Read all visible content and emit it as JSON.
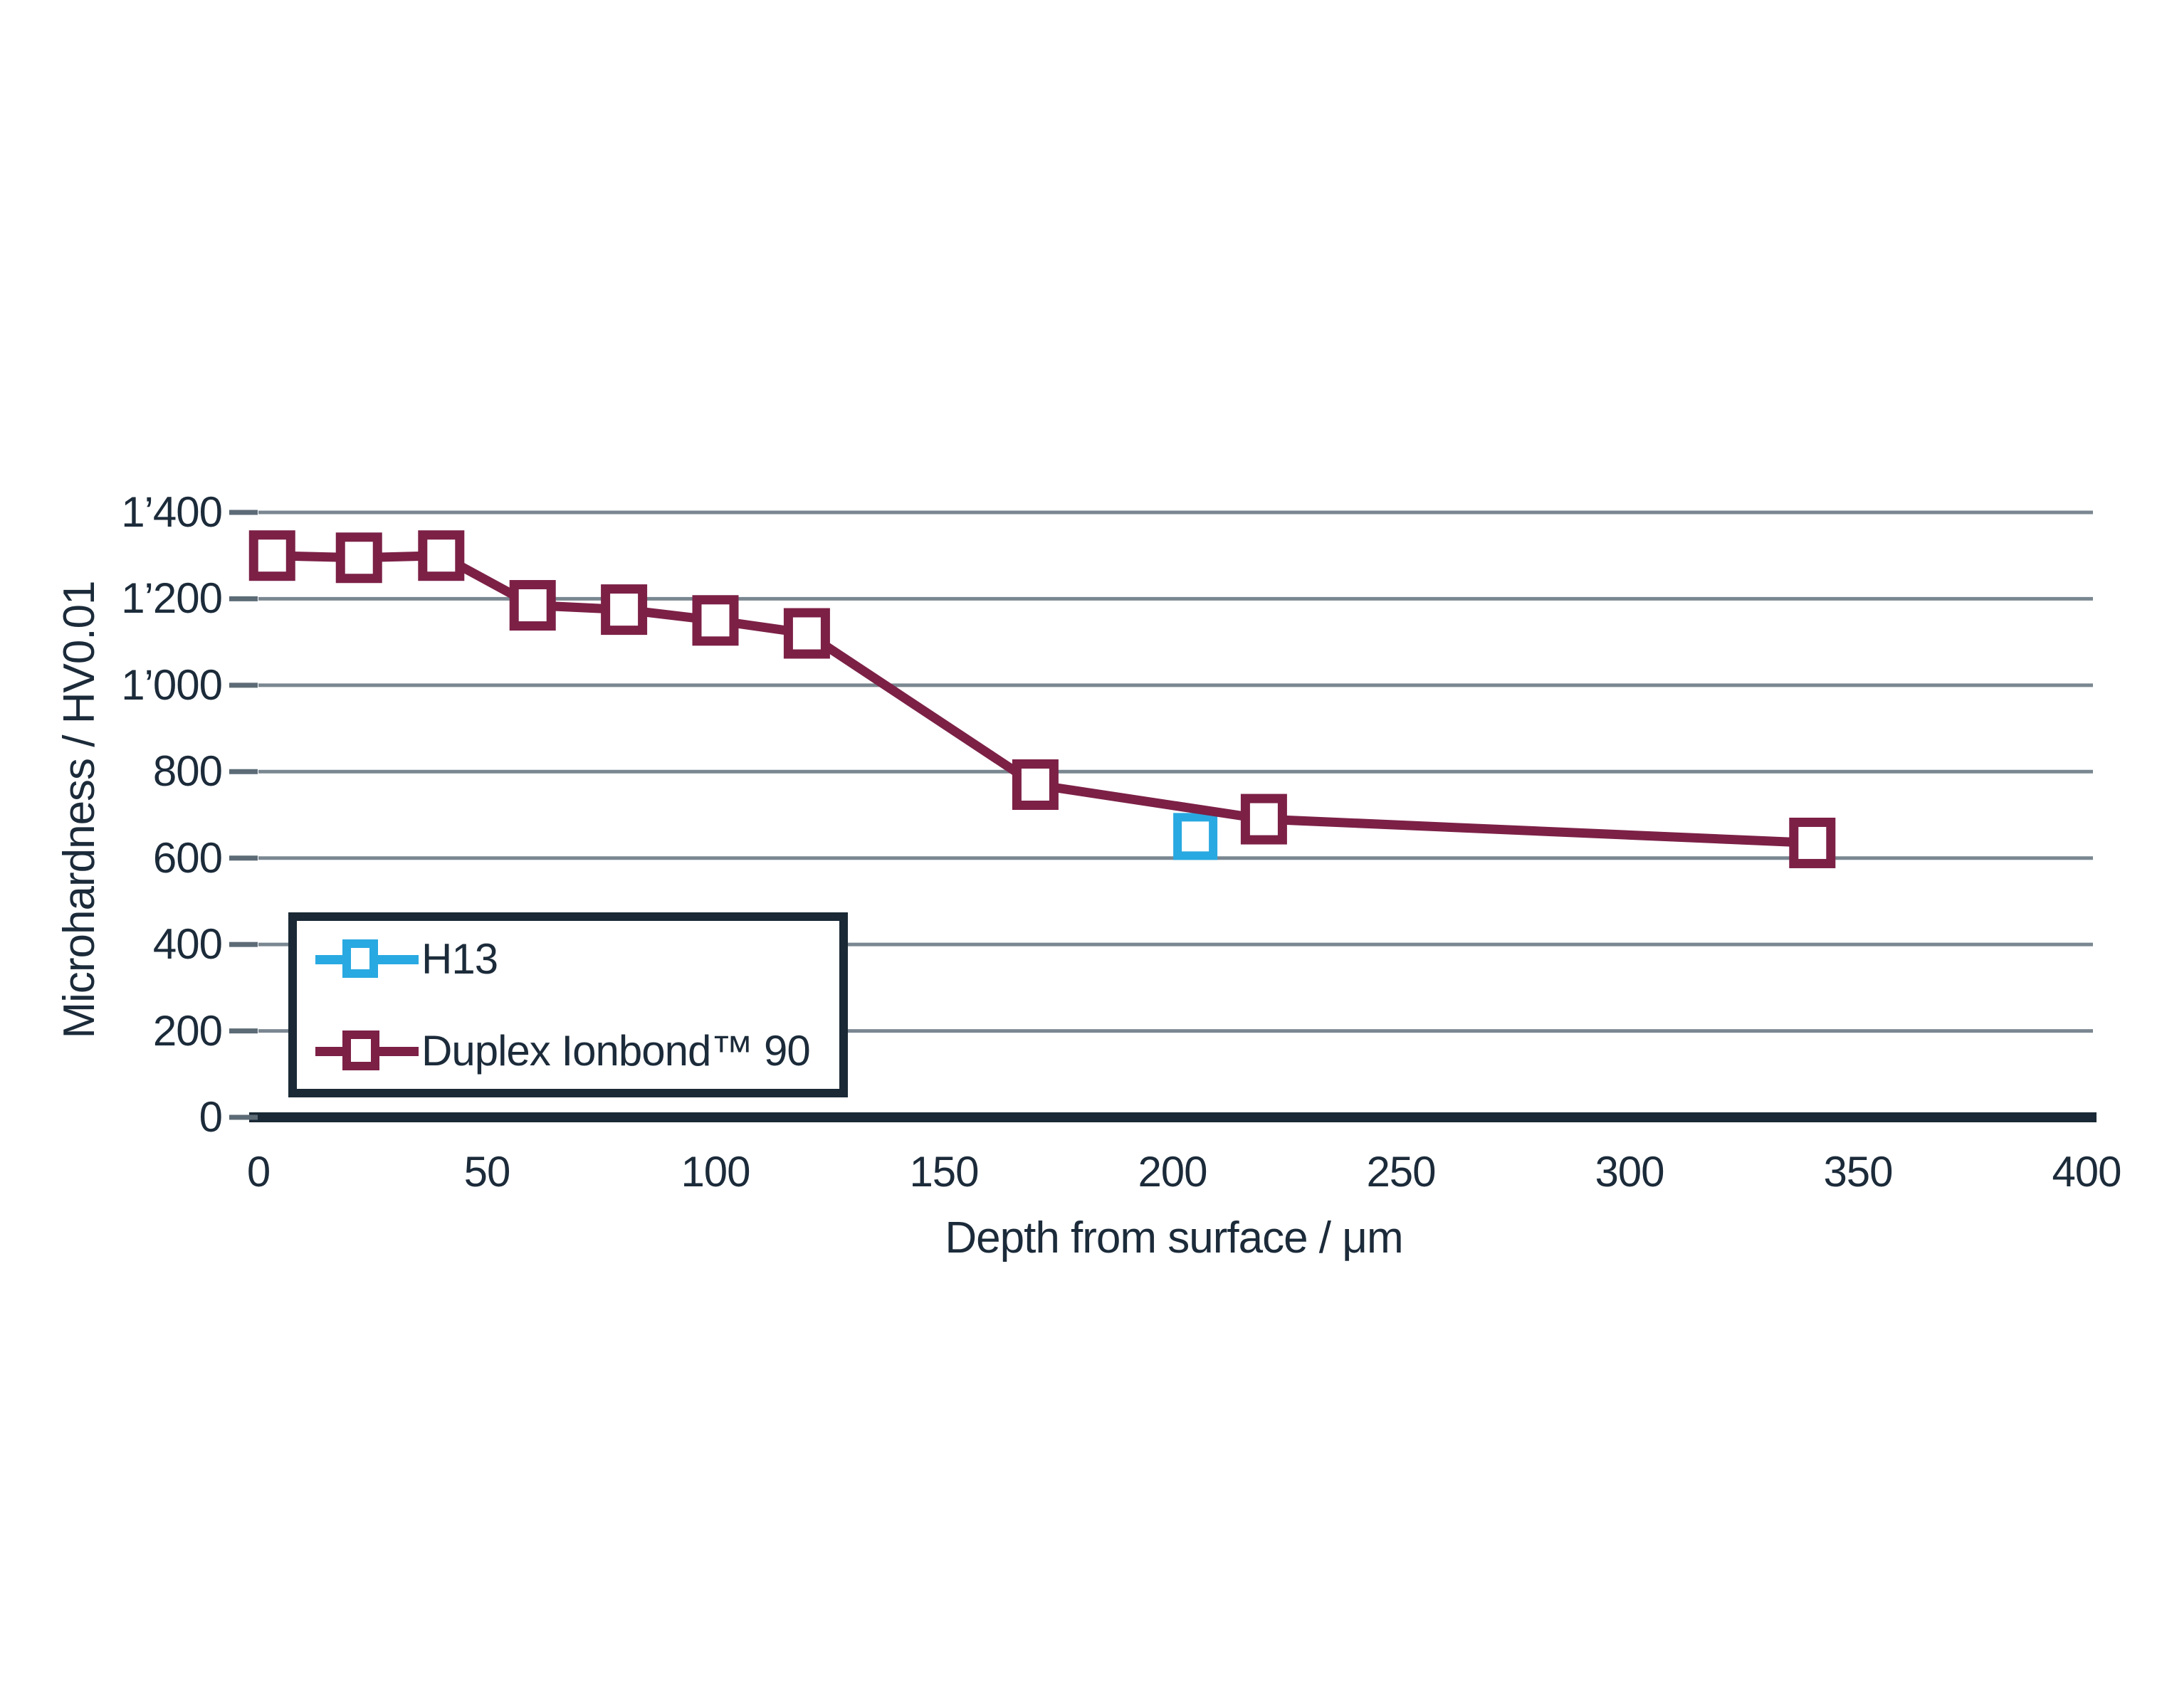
{
  "colors": {
    "background": "#ffffff",
    "text": "#1C2B3A",
    "gridline": "#7A8791",
    "tick": "#5C6B76",
    "axis_line": "#1A2935",
    "series_h13": "#29A9E1",
    "series_duplex": "#7C2046"
  },
  "chart_data": {
    "type": "line",
    "title": "",
    "xlabel": "Depth from surface / μm",
    "ylabel": "Microhardness / HV0.01",
    "xlim": [
      0,
      400
    ],
    "ylim": [
      0,
      1400
    ],
    "grid": "horizontal",
    "legend_position": "inside-bottom-left",
    "x_ticks": [
      {
        "value": 0,
        "label": "0"
      },
      {
        "value": 50,
        "label": "50"
      },
      {
        "value": 100,
        "label": "100"
      },
      {
        "value": 150,
        "label": "150"
      },
      {
        "value": 200,
        "label": "200"
      },
      {
        "value": 250,
        "label": "250"
      },
      {
        "value": 300,
        "label": "300"
      },
      {
        "value": 350,
        "label": "350"
      },
      {
        "value": 400,
        "label": "400"
      }
    ],
    "y_ticks": [
      {
        "value": 0,
        "label": "0"
      },
      {
        "value": 200,
        "label": "200"
      },
      {
        "value": 400,
        "label": "400"
      },
      {
        "value": 600,
        "label": "600"
      },
      {
        "value": 800,
        "label": "800"
      },
      {
        "value": 1000,
        "label": "1’000"
      },
      {
        "value": 1200,
        "label": "1’200"
      },
      {
        "value": 1400,
        "label": "1’400"
      }
    ],
    "series": [
      {
        "name": "H13",
        "color": "#29A9E1",
        "marker": "square-outline",
        "line": false,
        "points": [
          {
            "x": 205,
            "y": 650
          }
        ]
      },
      {
        "name": "Duplex Ionbond™ 90",
        "color": "#7C2046",
        "marker": "square-outline",
        "line": true,
        "points": [
          {
            "x": 3,
            "y": 1300
          },
          {
            "x": 22,
            "y": 1295
          },
          {
            "x": 40,
            "y": 1300
          },
          {
            "x": 60,
            "y": 1185
          },
          {
            "x": 80,
            "y": 1175
          },
          {
            "x": 100,
            "y": 1150
          },
          {
            "x": 120,
            "y": 1120
          },
          {
            "x": 170,
            "y": 770
          },
          {
            "x": 220,
            "y": 690
          },
          {
            "x": 340,
            "y": 635
          }
        ]
      }
    ]
  }
}
